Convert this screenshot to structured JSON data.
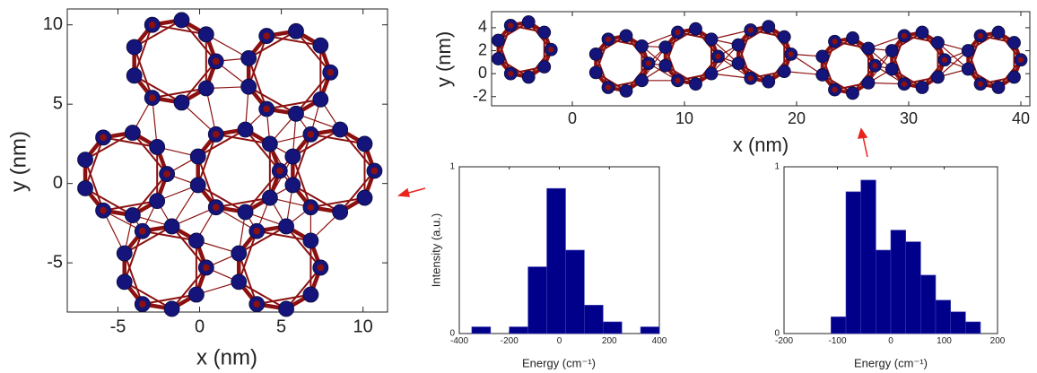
{
  "chart_data": [
    {
      "type": "network",
      "xlabel": "x (nm)",
      "ylabel": "y (nm)",
      "xlim": [
        -8.1,
        11.5
      ],
      "ylim": [
        -8.1,
        11.0
      ],
      "xticks": [
        -5,
        0,
        5,
        10
      ],
      "yticks": [
        -5,
        0,
        5,
        10
      ],
      "color": "#14147a",
      "edge_color": "#8b1010",
      "x": [
        1.0,
        0.4,
        -1.1,
        -2.9,
        -4.0,
        -4.0,
        -2.9,
        -1.1,
        0.4,
        8.0,
        7.4,
        5.9,
        4.1,
        3.0,
        3.0,
        4.1,
        5.9,
        7.4,
        -2.0,
        -2.6,
        -4.1,
        -5.9,
        -7.0,
        -7.0,
        -5.9,
        -4.1,
        -2.6,
        4.9,
        4.3,
        2.8,
        1.0,
        -0.1,
        -0.1,
        1.0,
        2.8,
        4.3,
        10.7,
        10.1,
        8.6,
        6.8,
        5.7,
        5.7,
        6.8,
        8.6,
        10.1,
        0.4,
        -0.2,
        -1.7,
        -3.5,
        -4.6,
        -4.6,
        -3.5,
        -1.7,
        -0.2,
        7.4,
        6.8,
        5.3,
        3.5,
        2.4,
        2.4,
        3.5,
        5.3,
        6.8
      ],
      "y": [
        7.7,
        9.4,
        10.3,
        10.0,
        8.6,
        6.8,
        5.4,
        5.1,
        6.0,
        7.0,
        8.7,
        9.6,
        9.3,
        7.9,
        6.1,
        4.7,
        4.4,
        5.3,
        0.6,
        2.3,
        3.2,
        2.9,
        1.5,
        -0.3,
        -1.7,
        -2.0,
        -1.1,
        0.8,
        2.5,
        3.4,
        3.1,
        1.7,
        -0.1,
        -1.5,
        -1.8,
        -0.9,
        0.8,
        2.5,
        3.4,
        3.1,
        1.7,
        -0.1,
        -1.5,
        -1.8,
        -0.9,
        -5.3,
        -3.6,
        -2.7,
        -3.0,
        -4.4,
        -6.2,
        -7.6,
        -7.9,
        -7.0,
        -5.3,
        -3.6,
        -2.7,
        -3.0,
        -4.4,
        -6.2,
        -7.6,
        -7.9,
        -7.0
      ]
    },
    {
      "type": "network",
      "xlabel": "x (nm)",
      "ylabel": "y (nm)",
      "xlim": [
        -7.2,
        40.8
      ],
      "ylim": [
        -2.8,
        5.4
      ],
      "xticks": [
        0,
        10,
        20,
        30,
        40
      ],
      "yticks": [
        -2,
        0,
        2,
        4
      ],
      "color": "#14147a",
      "edge_color": "#8b1010",
      "x": [
        -1.9,
        -2.5,
        -3.9,
        -5.5,
        -6.6,
        -6.6,
        -5.5,
        -3.9,
        -2.5,
        6.8,
        6.2,
        4.8,
        3.2,
        2.1,
        2.1,
        3.2,
        4.8,
        6.2,
        13.0,
        12.4,
        11.0,
        9.4,
        8.3,
        8.3,
        9.4,
        11.0,
        12.4,
        19.5,
        18.9,
        17.5,
        15.9,
        14.8,
        14.8,
        15.9,
        17.5,
        18.9,
        27.0,
        26.4,
        25.0,
        23.4,
        22.3,
        22.3,
        23.4,
        25.0,
        26.4,
        33.2,
        32.6,
        31.2,
        29.6,
        28.5,
        28.5,
        29.6,
        31.2,
        32.6,
        40.0,
        39.4,
        38.0,
        36.4,
        35.3,
        35.3,
        36.4,
        38.0,
        39.4
      ],
      "y": [
        2.1,
        3.6,
        4.5,
        4.2,
        2.9,
        1.3,
        0.0,
        -0.3,
        0.6,
        0.9,
        2.4,
        3.3,
        3.0,
        1.7,
        0.1,
        -1.2,
        -1.5,
        -0.6,
        1.5,
        3.0,
        3.9,
        3.6,
        2.3,
        0.7,
        -0.6,
        -0.9,
        0.0,
        1.7,
        3.2,
        4.1,
        3.8,
        2.5,
        0.9,
        -0.4,
        -0.7,
        0.2,
        0.7,
        2.2,
        3.1,
        2.8,
        1.5,
        -0.1,
        -1.4,
        -1.7,
        -0.8,
        1.2,
        2.7,
        3.6,
        3.3,
        2.0,
        0.4,
        -0.9,
        -1.2,
        -0.3,
        1.2,
        2.7,
        3.6,
        3.3,
        2.0,
        0.4,
        -0.9,
        -1.2,
        -0.3
      ]
    },
    {
      "type": "histogram",
      "xlabel": "Energy (cm⁻¹)",
      "ylabel": "Intensity (a.u.)",
      "xlim": [
        -400,
        400
      ],
      "ylim": [
        0,
        1
      ],
      "xticks": [
        -400,
        -200,
        0,
        200,
        400
      ],
      "yticks": [
        0,
        1
      ],
      "color": "#00008b",
      "bins": [
        -350,
        -275,
        -200,
        -125,
        -50,
        25,
        100,
        175,
        250,
        325,
        400
      ],
      "values": [
        0.04,
        0,
        0.04,
        0.4,
        0.87,
        0.5,
        0.17,
        0.07,
        0,
        0.04
      ]
    },
    {
      "type": "histogram",
      "xlabel": "Energy (cm⁻¹)",
      "xlim": [
        -200,
        200
      ],
      "ylim": [
        0,
        1
      ],
      "xticks": [
        -200,
        -100,
        0,
        100,
        200
      ],
      "yticks": [
        0,
        1
      ],
      "color": "#00008b",
      "bins": [
        -112,
        -84,
        -56,
        -28,
        0,
        28,
        56,
        84,
        112,
        140,
        168
      ],
      "values": [
        0.1,
        0.85,
        0.92,
        0.5,
        0.62,
        0.55,
        0.35,
        0.2,
        0.13,
        0.07
      ]
    }
  ]
}
